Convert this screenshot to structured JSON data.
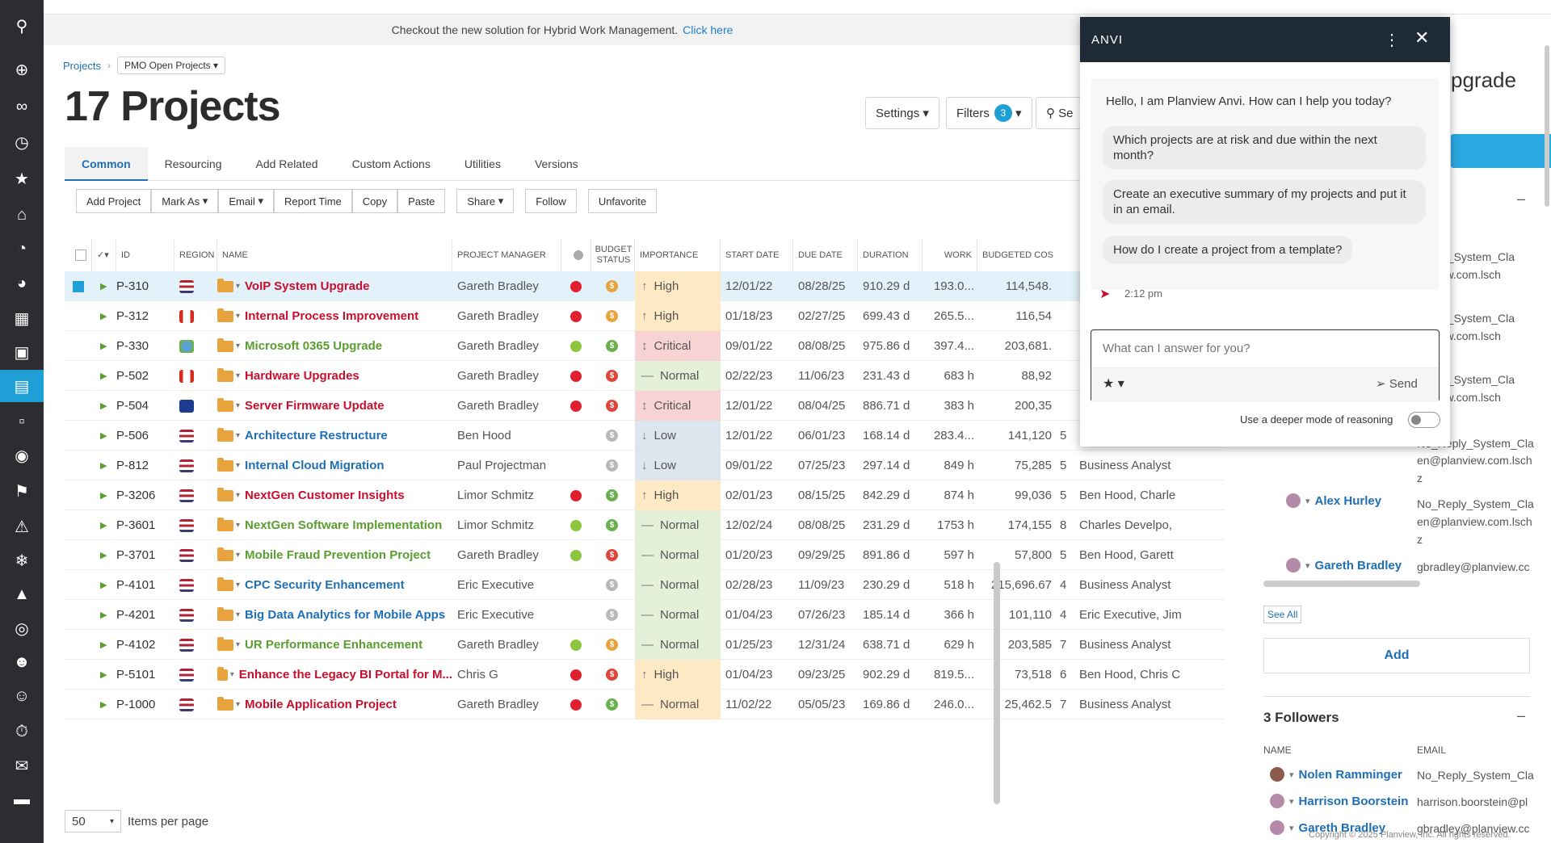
{
  "banner": {
    "text": "Checkout the new solution for Hybrid Work Management.",
    "link": "Click here"
  },
  "breadcrumb": {
    "root": "Projects",
    "view": "PMO Open Projects"
  },
  "page": {
    "title": "17 Projects"
  },
  "header_buttons": {
    "settings": "Settings",
    "filters": "Filters",
    "filters_count": "3",
    "search": "Se"
  },
  "tabs": [
    "Common",
    "Resourcing",
    "Add Related",
    "Custom Actions",
    "Utilities",
    "Versions"
  ],
  "toolbar": [
    "Add Project",
    "Mark As",
    "Email",
    "Report Time",
    "Copy",
    "Paste",
    "Share",
    "Follow",
    "Unfavorite"
  ],
  "columns": {
    "id": "ID",
    "region": "REGION",
    "name": "NAME",
    "pm": "PROJECT MANAGER",
    "budget": "BUDGET STATUS",
    "importance": "IMPORTANCE",
    "start": "START DATE",
    "due": "DUE DATE",
    "duration": "DURATION",
    "work": "WORK",
    "budgeted": "BUDGETED COS"
  },
  "rows": [
    {
      "id": "P-310",
      "name": "VoIP System Upgrade",
      "pm": "Gareth Bradley",
      "imp": "High",
      "start": "12/01/22",
      "due": "08/28/25",
      "dur": "910.29 d",
      "work": "193.0...",
      "cost": "114,548.",
      "n": "",
      "res": ""
    },
    {
      "id": "P-312",
      "name": "Internal Process Improvement",
      "pm": "Gareth Bradley",
      "imp": "High",
      "start": "01/18/23",
      "due": "02/27/25",
      "dur": "699.43 d",
      "work": "265.5...",
      "cost": "116,54",
      "n": "",
      "res": ""
    },
    {
      "id": "P-330",
      "name": "Microsoft 0365 Upgrade",
      "pm": "Gareth Bradley",
      "imp": "Critical",
      "start": "09/01/22",
      "due": "08/08/25",
      "dur": "975.86 d",
      "work": "397.4...",
      "cost": "203,681.",
      "n": "",
      "res": ""
    },
    {
      "id": "P-502",
      "name": "Hardware Upgrades",
      "pm": "Gareth Bradley",
      "imp": "Normal",
      "start": "02/22/23",
      "due": "11/06/23",
      "dur": "231.43 d",
      "work": "683 h",
      "cost": "88,92",
      "n": "",
      "res": ""
    },
    {
      "id": "P-504",
      "name": "Server Firmware Update",
      "pm": "Gareth Bradley",
      "imp": "Critical",
      "start": "12/01/22",
      "due": "08/04/25",
      "dur": "886.71 d",
      "work": "383 h",
      "cost": "200,35",
      "n": "",
      "res": ""
    },
    {
      "id": "P-506",
      "name": "Architecture Restructure",
      "pm": "Ben Hood",
      "imp": "Low",
      "start": "12/01/22",
      "due": "06/01/23",
      "dur": "168.14 d",
      "work": "283.4...",
      "cost": "141,120",
      "n": "5",
      "res": "Ben Hood, Charle"
    },
    {
      "id": "P-812",
      "name": "Internal Cloud Migration",
      "pm": "Paul Projectman",
      "imp": "Low",
      "start": "09/01/22",
      "due": "07/25/23",
      "dur": "297.14 d",
      "work": "849 h",
      "cost": "75,285",
      "n": "5",
      "res": "Business Analyst"
    },
    {
      "id": "P-3206",
      "name": "NextGen Customer Insights",
      "pm": "Limor Schmitz",
      "imp": "High",
      "start": "02/01/23",
      "due": "08/15/25",
      "dur": "842.29 d",
      "work": "874 h",
      "cost": "99,036",
      "n": "5",
      "res": "Ben Hood, Charle"
    },
    {
      "id": "P-3601",
      "name": "NextGen Software Implementation",
      "pm": "Limor Schmitz",
      "imp": "Normal",
      "start": "12/02/24",
      "due": "08/08/25",
      "dur": "231.29 d",
      "work": "1753 h",
      "cost": "174,155",
      "n": "8",
      "res": "Charles Develpo,"
    },
    {
      "id": "P-3701",
      "name": "Mobile Fraud Prevention Project",
      "pm": "Gareth Bradley",
      "imp": "Normal",
      "start": "01/20/23",
      "due": "09/29/25",
      "dur": "891.86 d",
      "work": "597 h",
      "cost": "57,800",
      "n": "5",
      "res": "Ben Hood, Garett"
    },
    {
      "id": "P-4101",
      "name": "CPC Security Enhancement",
      "pm": "Eric Executive",
      "imp": "Normal",
      "start": "02/28/23",
      "due": "11/09/23",
      "dur": "230.29 d",
      "work": "518 h",
      "cost": "215,696.67",
      "n": "4",
      "res": "Business Analyst"
    },
    {
      "id": "P-4201",
      "name": "Big Data Analytics for Mobile Apps",
      "pm": "Eric Executive",
      "imp": "Normal",
      "start": "01/04/23",
      "due": "07/26/23",
      "dur": "185.14 d",
      "work": "366 h",
      "cost": "101,110",
      "n": "4",
      "res": "Eric Executive, Jim"
    },
    {
      "id": "P-4102",
      "name": "UR Performance Enhancement",
      "pm": "Gareth Bradley",
      "imp": "Normal",
      "start": "01/25/23",
      "due": "12/31/24",
      "dur": "638.71 d",
      "work": "629 h",
      "cost": "203,585",
      "n": "7",
      "res": "Business Analyst"
    },
    {
      "id": "P-5101",
      "name": "Enhance the Legacy BI Portal for M...",
      "pm": "Chris G",
      "imp": "High",
      "start": "01/04/23",
      "due": "09/23/25",
      "dur": "902.29 d",
      "work": "819.5...",
      "cost": "73,518",
      "n": "6",
      "res": "Ben Hood, Chris C"
    },
    {
      "id": "P-1000",
      "name": "Mobile Application Project",
      "pm": "Gareth Bradley",
      "imp": "Normal",
      "start": "11/02/22",
      "due": "05/05/23",
      "dur": "169.86 d",
      "work": "246.0...",
      "cost": "25,462.5",
      "n": "7",
      "res": "Business Analyst"
    }
  ],
  "row_style": [
    {
      "status": "red",
      "coin": "orange",
      "color": "#c8102e",
      "flag": "us",
      "imp_color": "#fde9c4",
      "imp_icon": "↑"
    },
    {
      "status": "red",
      "coin": "orange",
      "color": "#c8102e",
      "flag": "ca",
      "imp_color": "#fde9c4",
      "imp_icon": "↑"
    },
    {
      "status": "green",
      "coin": "green",
      "color": "#5a9e2f",
      "flag": "globe",
      "imp_color": "#f8d3d3",
      "imp_icon": "↕"
    },
    {
      "status": "red",
      "coin": "red",
      "color": "#c8102e",
      "flag": "ca",
      "imp_color": "#e5f0d9",
      "imp_icon": "—"
    },
    {
      "status": "red",
      "coin": "red",
      "color": "#c8102e",
      "flag": "eu",
      "imp_color": "#f8d3d3",
      "imp_icon": "↕"
    },
    {
      "status": "",
      "coin": "gray",
      "color": "#1f6fb6",
      "flag": "us",
      "imp_color": "#dde6ef",
      "imp_icon": "↓"
    },
    {
      "status": "",
      "coin": "gray",
      "color": "#1f6fb6",
      "flag": "us",
      "imp_color": "#dde6ef",
      "imp_icon": "↓"
    },
    {
      "status": "red",
      "coin": "green",
      "color": "#c8102e",
      "flag": "us",
      "imp_color": "#fde9c4",
      "imp_icon": "↑"
    },
    {
      "status": "green",
      "coin": "green",
      "color": "#5a9e2f",
      "flag": "us",
      "imp_color": "#e5f0d9",
      "imp_icon": "—"
    },
    {
      "status": "green",
      "coin": "red",
      "color": "#5a9e2f",
      "flag": "us",
      "imp_color": "#e5f0d9",
      "imp_icon": "—"
    },
    {
      "status": "",
      "coin": "gray",
      "color": "#1f6fb6",
      "flag": "us",
      "imp_color": "#e5f0d9",
      "imp_icon": "—"
    },
    {
      "status": "",
      "coin": "gray",
      "color": "#1f6fb6",
      "flag": "us",
      "imp_color": "#e5f0d9",
      "imp_icon": "—"
    },
    {
      "status": "green",
      "coin": "orange",
      "color": "#5a9e2f",
      "flag": "us",
      "imp_color": "#e5f0d9",
      "imp_icon": "—"
    },
    {
      "status": "red",
      "coin": "red",
      "color": "#c8102e",
      "flag": "us",
      "imp_color": "#fde9c4",
      "imp_icon": "↑"
    },
    {
      "status": "red",
      "coin": "green",
      "color": "#c8102e",
      "flag": "us",
      "imp_color": "#fde9c4",
      "imp_icon": "—"
    }
  ],
  "chat": {
    "title": "ANVI",
    "greeting": "Hello, I am Planview Anvi. How can I help you today?",
    "suggestions": [
      "Which projects are at risk and due within the next month?",
      "Create an executive summary of my projects and put it in an email.",
      "How do I create a project from a template?"
    ],
    "time": "2:12 pm",
    "placeholder": "What can I answer for you?",
    "send": "Send",
    "reasoning": "Use a deeper mode of reasoning"
  },
  "right_panel": {
    "heading": "pgrade",
    "emails": [
      "Reply_System_Cla",
      "anview.com.lsch",
      "Reply_System_Cla",
      "anview.com.lsch",
      "Reply_System_Cla",
      "anview.com.lsch",
      "No_Reply_System_Cla",
      "en@planview.com.lsch",
      "z"
    ],
    "people": [
      {
        "name": "Alex Hurley",
        "email": "No_Reply_System_Cla",
        "email2": "en@planview.com.lsch",
        "email3": "z"
      },
      {
        "name": "Gareth Bradley",
        "email": "gbradley@planview.cc"
      }
    ],
    "see_all": "See All",
    "add": "Add",
    "followers_title": "3 Followers",
    "col_name": "NAME",
    "col_email": "EMAIL",
    "followers": [
      {
        "name": "Nolen Ramminger",
        "email": "No_Reply_System_Cla"
      },
      {
        "name": "Harrison Boorstein",
        "email": "harrison.boorstein@pl"
      },
      {
        "name": "Gareth Bradley",
        "email": "gbradley@planview.cc"
      }
    ],
    "copyright": "Copyright © 2025 Planview, Inc. All rights reserved."
  },
  "footer": {
    "per_page": "50",
    "label": "Items per page"
  },
  "colors": {
    "sidebar": "#2b2d31",
    "accent": "#1e9fd6",
    "chat_header": "#1f2a37"
  }
}
